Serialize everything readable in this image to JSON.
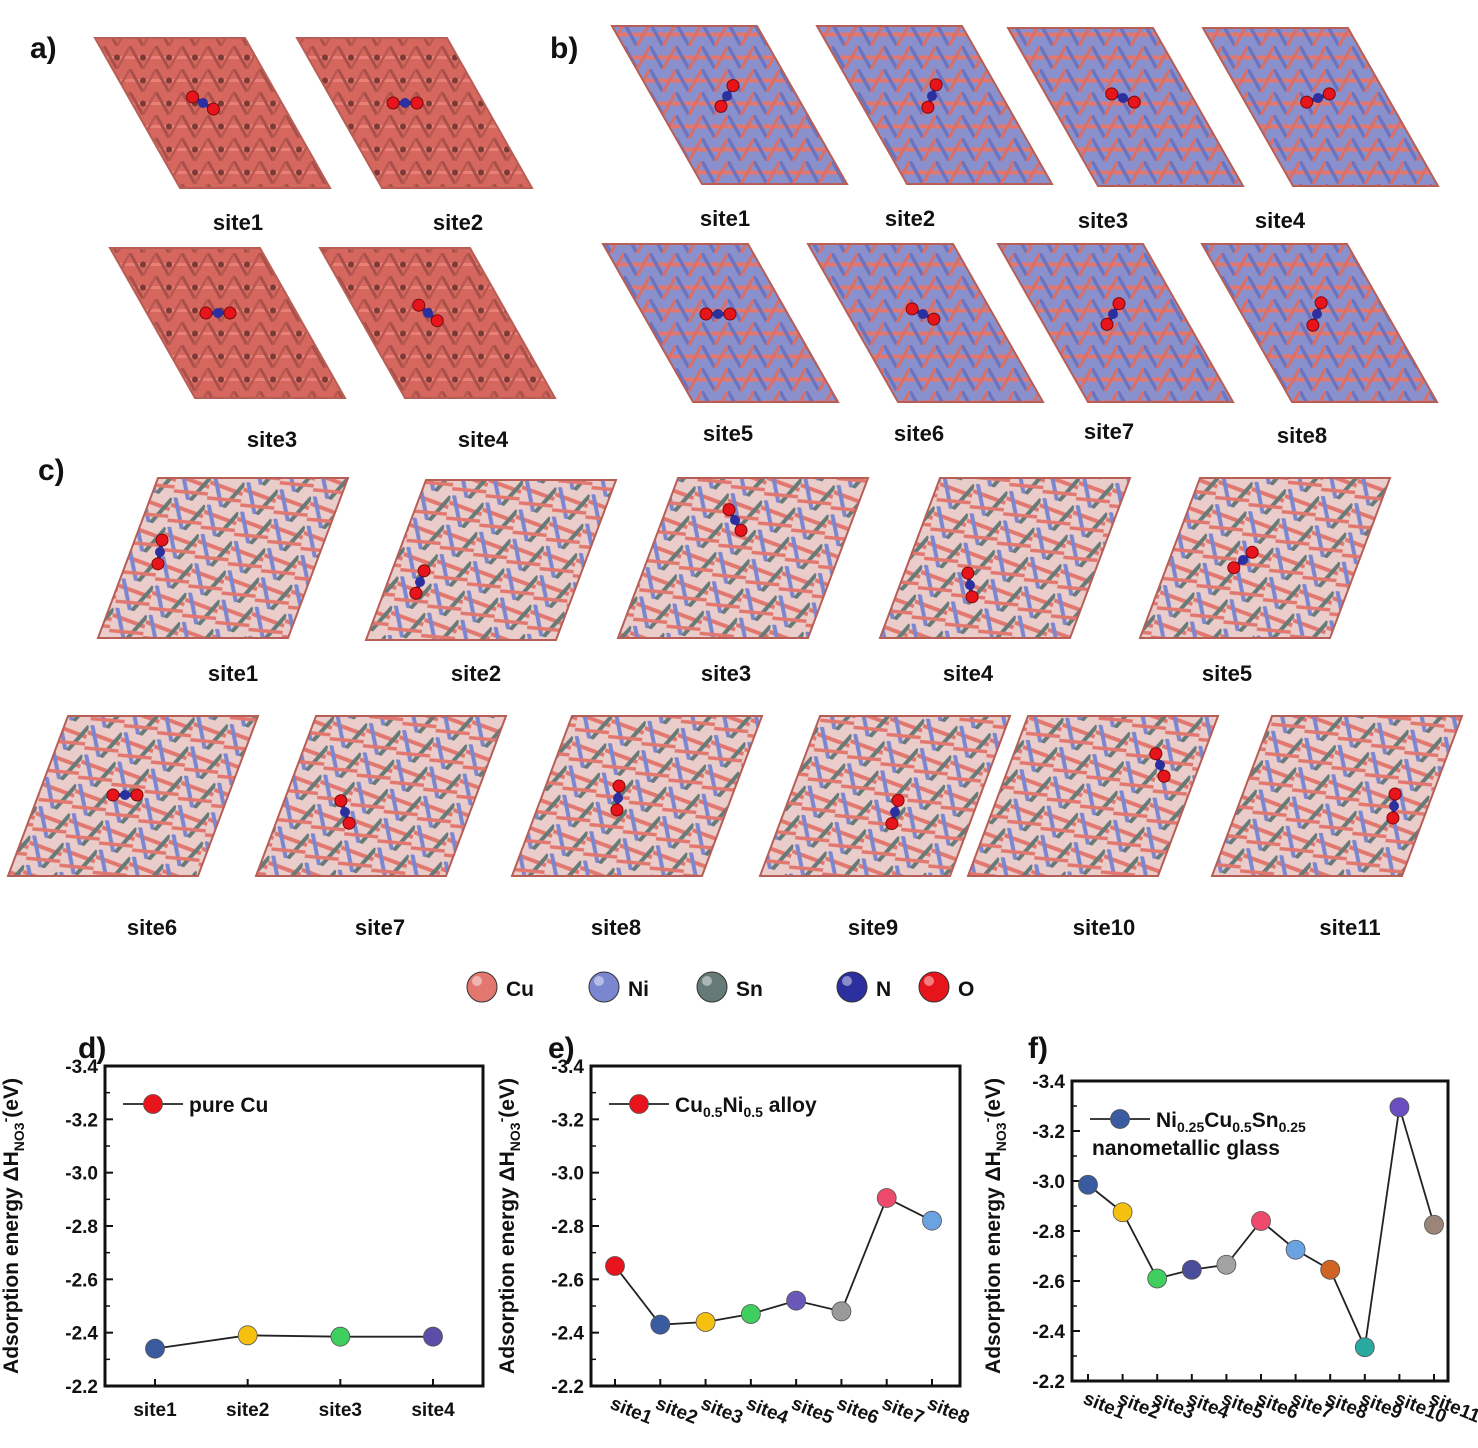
{
  "panels": {
    "a": {
      "label": "a)",
      "sites": [
        "site1",
        "site2",
        "site3",
        "site4"
      ]
    },
    "b": {
      "label": "b)",
      "sites": [
        "site1",
        "site2",
        "site3",
        "site4",
        "site5",
        "site6",
        "site7",
        "site8"
      ]
    },
    "c": {
      "label": "c)",
      "sites": [
        "site1",
        "site2",
        "site3",
        "site4",
        "site5",
        "site6",
        "site7",
        "site8",
        "site9",
        "site10",
        "site11"
      ]
    }
  },
  "atom_legend": [
    {
      "label": "Cu",
      "color": "#e2776f"
    },
    {
      "label": "Ni",
      "color": "#7b86d0"
    },
    {
      "label": "Sn",
      "color": "#667a78"
    },
    {
      "label": "N",
      "color": "#2c2f9e"
    },
    {
      "label": "O",
      "color": "#e8141c"
    }
  ],
  "chart_data": [
    {
      "panel": "d)",
      "type": "line",
      "title": "",
      "xlabel": "",
      "ylabel": "Adsorption energy ΔH",
      "ylabel_sub": "NO3",
      "ylabel_sup": "-",
      "ylabel_unit": "(eV)",
      "ylim": [
        -2.2,
        -3.4
      ],
      "yticks": [
        "-2.2",
        "-2.4",
        "-2.6",
        "-2.8",
        "-3.0",
        "-3.2",
        "-3.4"
      ],
      "ytick_values": [
        -2.2,
        -2.4,
        -2.6,
        -2.8,
        -3.0,
        -3.2,
        -3.4
      ],
      "categories": [
        "site1",
        "site2",
        "site3",
        "site4"
      ],
      "values": [
        -2.34,
        -2.39,
        -2.385,
        -2.385
      ],
      "colors": [
        "#3a5ba0",
        "#f5c10e",
        "#3fcf5e",
        "#5a4ea8"
      ],
      "legend": {
        "marker_color": "#e8141c",
        "text": "pure Cu"
      }
    },
    {
      "panel": "e)",
      "type": "line",
      "title": "",
      "xlabel": "",
      "ylabel": "Adsorption energy ΔH",
      "ylabel_sub": "NO3",
      "ylabel_sup": "-",
      "ylabel_unit": "(eV)",
      "ylim": [
        -2.2,
        -3.4
      ],
      "yticks": [
        "-2.2",
        "-2.4",
        "-2.6",
        "-2.8",
        "-3.0",
        "-3.2",
        "-3.4"
      ],
      "ytick_values": [
        -2.2,
        -2.4,
        -2.6,
        -2.8,
        -3.0,
        -3.2,
        -3.4
      ],
      "categories": [
        "site1",
        "site2",
        "site3",
        "site4",
        "site5",
        "site6",
        "site7",
        "site8"
      ],
      "values": [
        -2.65,
        -2.43,
        -2.44,
        -2.47,
        -2.52,
        -2.48,
        -2.905,
        -2.82
      ],
      "colors": [
        "#e8141c",
        "#3a5ba0",
        "#f5c10e",
        "#3fcf5e",
        "#6a58b8",
        "#9a9a9a",
        "#ee4a6e",
        "#6aa2e2"
      ],
      "legend": {
        "marker_color": "#e8141c",
        "text_parts": [
          "Cu",
          "0.5",
          "Ni",
          "0.5",
          " alloy"
        ]
      }
    },
    {
      "panel": "f)",
      "type": "line",
      "title": "",
      "xlabel": "",
      "ylabel": "Adsorption energy ΔH",
      "ylabel_sub": "NO3",
      "ylabel_sup": "-",
      "ylabel_unit": "(eV)",
      "ylim": [
        -2.2,
        -3.4
      ],
      "yticks": [
        "-2.2",
        "-2.4",
        "-2.6",
        "-2.8",
        "-3.0",
        "-3.2",
        "-3.4"
      ],
      "ytick_values": [
        -2.2,
        -2.4,
        -2.6,
        -2.8,
        -3.0,
        -3.2,
        -3.4
      ],
      "categories": [
        "site1",
        "site2",
        "site3",
        "site4",
        "site5",
        "site6",
        "site7",
        "site8",
        "site9",
        "site10",
        "site11"
      ],
      "values": [
        -2.985,
        -2.875,
        -2.61,
        -2.645,
        -2.665,
        -2.84,
        -2.725,
        -2.645,
        -2.335,
        -3.295,
        -2.825
      ],
      "colors": [
        "#3a5ba0",
        "#f5c10e",
        "#3fcf5e",
        "#4a4e9a",
        "#a3a3a3",
        "#ee4a6e",
        "#6aa2e2",
        "#d06424",
        "#2aa9a0",
        "#6a4ec0",
        "#9b8478"
      ],
      "legend": {
        "marker_color": "#3a5ba0",
        "text_parts": [
          "Ni",
          "0.25",
          "Cu",
          "0.5",
          "Sn",
          "0.25"
        ],
        "text2": "nanometallic glass"
      }
    }
  ]
}
